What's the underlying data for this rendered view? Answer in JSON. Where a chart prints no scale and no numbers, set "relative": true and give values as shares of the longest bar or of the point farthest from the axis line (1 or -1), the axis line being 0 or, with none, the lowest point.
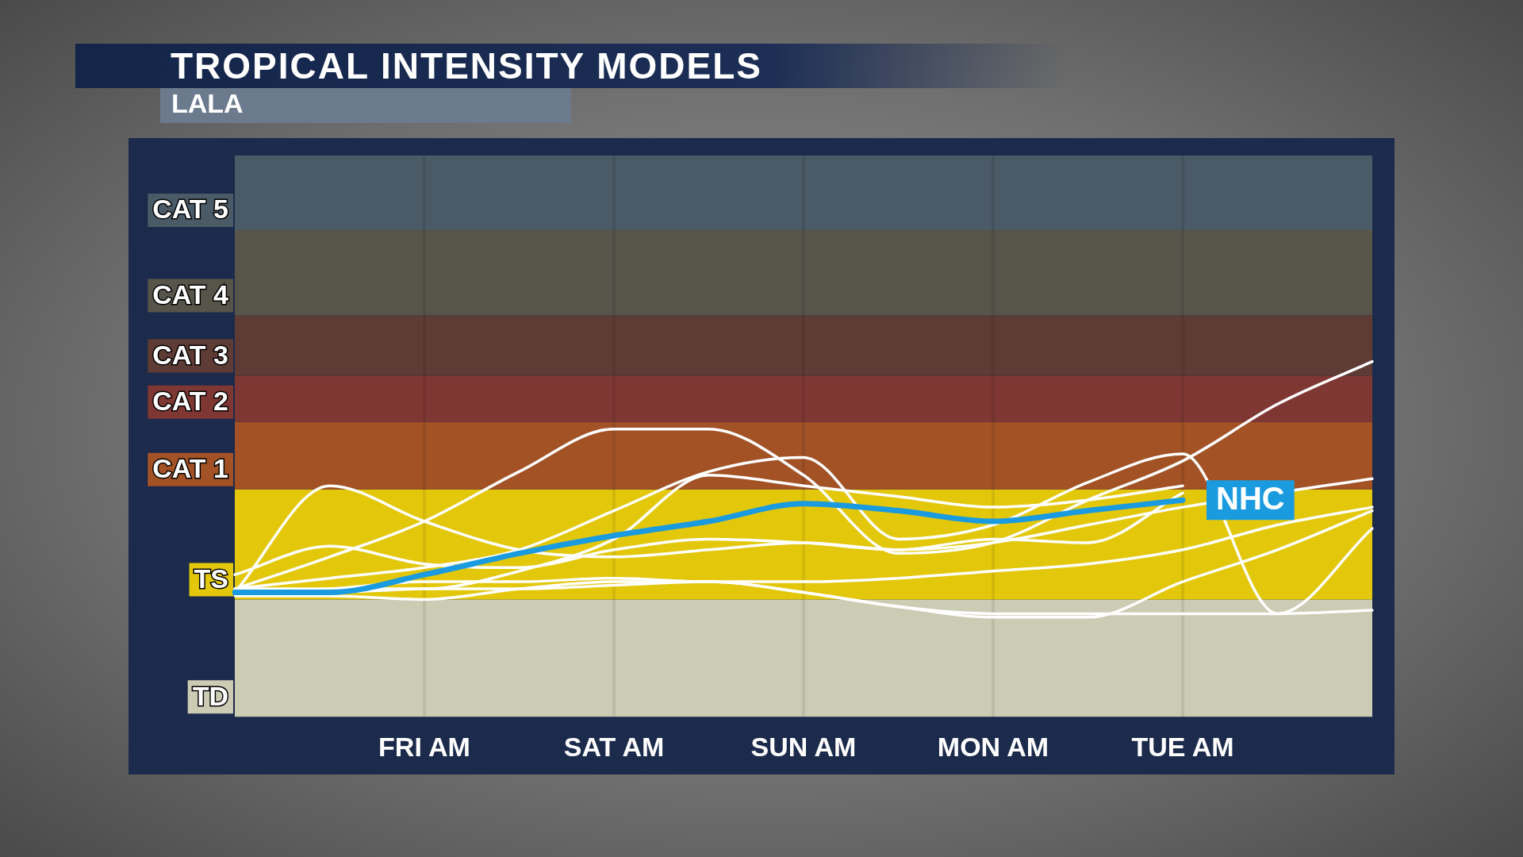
{
  "chart_data": {
    "type": "line",
    "title": "TROPICAL INTENSITY MODELS",
    "subtitle": "LALA",
    "relative": true,
    "categories": [
      null,
      null,
      "FRI AM",
      null,
      "SAT AM",
      null,
      "SUN AM",
      null,
      "MON AM",
      null,
      "TUE AM",
      null,
      null
    ],
    "grid": "x",
    "legend": false,
    "marker": "none",
    "line_style": "solid",
    "bands": [
      {
        "axis": "y",
        "from": 0,
        "to": 0.33,
        "label": "TD",
        "color": "#cccbb4"
      },
      {
        "axis": "y",
        "from": 0.33,
        "to": 0.64,
        "label": "TS",
        "color": "#e3c70b"
      },
      {
        "axis": "y",
        "from": 0.64,
        "to": 0.83,
        "label": "CAT 1",
        "color": "#a25225"
      },
      {
        "axis": "y",
        "from": 0.83,
        "to": 0.96,
        "label": "CAT 2",
        "color": "#7f3733"
      },
      {
        "axis": "y",
        "from": 0.96,
        "to": 1.13,
        "label": "CAT 3",
        "color": "#5e3b34"
      },
      {
        "axis": "y",
        "from": 1.13,
        "to": 1.37,
        "label": "CAT 4",
        "color": "#57544a"
      },
      {
        "axis": "y",
        "from": 1.37,
        "to": 1.58,
        "label": "CAT 5",
        "color": "#4a5a66"
      }
    ],
    "series": [
      {
        "color": "#ffffff",
        "values": [
          0.36,
          0.45,
          0.55,
          0.69,
          0.81,
          0.81,
          0.68,
          0.46,
          0.49,
          0.61,
          0.72,
          0.88,
          1.0
        ]
      },
      {
        "color": "#ffffff",
        "values": [
          0.35,
          0.65,
          0.55,
          0.47,
          0.45,
          0.47,
          0.49,
          0.47,
          0.5,
          0.49,
          0.63,
          null,
          null
        ]
      },
      {
        "color": "#ffffff",
        "values": [
          0.36,
          0.39,
          0.42,
          0.47,
          0.58,
          0.69,
          0.73,
          0.5,
          0.54,
          0.66,
          0.74,
          0.29,
          0.53
        ]
      },
      {
        "color": "#ffffff",
        "values": [
          0.34,
          0.34,
          0.33,
          0.36,
          0.38,
          0.38,
          0.35,
          0.31,
          0.28,
          0.28,
          0.38,
          0.47,
          0.58
        ]
      },
      {
        "color": "#ffffff",
        "values": [
          0.35,
          0.36,
          0.38,
          0.38,
          0.39,
          0.38,
          0.38,
          0.39,
          0.41,
          0.43,
          0.47,
          0.54,
          0.59
        ]
      },
      {
        "color": "#ffffff",
        "values": [
          0.35,
          0.35,
          0.36,
          0.36,
          0.37,
          0.38,
          0.35,
          0.31,
          0.29,
          0.29,
          0.29,
          0.29,
          0.3
        ]
      },
      {
        "color": "#ffffff",
        "values": [
          0.4,
          0.48,
          0.43,
          0.42,
          0.47,
          0.5,
          0.49,
          0.47,
          0.49,
          0.54,
          0.59,
          null,
          0.67
        ]
      },
      {
        "color": "#ffffff",
        "values": [
          0.36,
          0.36,
          0.36,
          0.41,
          0.5,
          0.68,
          0.65,
          0.62,
          0.59,
          0.61,
          0.65,
          null,
          null
        ]
      },
      {
        "name": "NHC",
        "color": "#1a9be0",
        "values": [
          0.35,
          0.35,
          0.4,
          0.46,
          0.51,
          0.55,
          0.6,
          0.58,
          0.55,
          0.58,
          0.61,
          null,
          null
        ]
      }
    ]
  }
}
